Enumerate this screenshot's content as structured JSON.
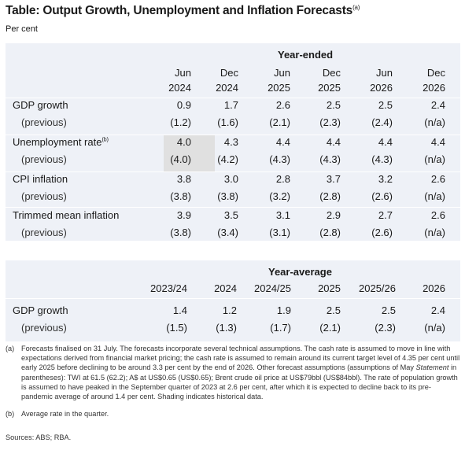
{
  "title": "Table: Output Growth, Unemployment and Inflation Forecasts",
  "title_note": "(a)",
  "subtitle": "Per cent",
  "table1": {
    "group_label": "Year-ended",
    "columns": [
      {
        "month": "Jun",
        "year": "2024"
      },
      {
        "month": "Dec",
        "year": "2024"
      },
      {
        "month": "Jun",
        "year": "2025"
      },
      {
        "month": "Dec",
        "year": "2025"
      },
      {
        "month": "Jun",
        "year": "2026"
      },
      {
        "month": "Dec",
        "year": "2026"
      }
    ],
    "rows": [
      {
        "label": "GDP growth",
        "label_note": "",
        "values": [
          "0.9",
          "1.7",
          "2.6",
          "2.5",
          "2.5",
          "2.4"
        ],
        "previous_label": "(previous)",
        "previous": [
          "(1.2)",
          "(1.6)",
          "(2.1)",
          "(2.3)",
          "(2.4)",
          "(n/a)"
        ]
      },
      {
        "label": "Unemployment rate",
        "label_note": "(b)",
        "values": [
          "4.0",
          "4.3",
          "4.4",
          "4.4",
          "4.4",
          "4.4"
        ],
        "previous_label": "(previous)",
        "previous": [
          "(4.0)",
          "(4.2)",
          "(4.3)",
          "(4.3)",
          "(4.3)",
          "(n/a)"
        ]
      },
      {
        "label": "CPI inflation",
        "label_note": "",
        "values": [
          "3.8",
          "3.0",
          "2.8",
          "3.7",
          "3.2",
          "2.6"
        ],
        "previous_label": "(previous)",
        "previous": [
          "(3.8)",
          "(3.8)",
          "(3.2)",
          "(2.8)",
          "(2.6)",
          "(n/a)"
        ]
      },
      {
        "label": "Trimmed mean inflation",
        "label_note": "",
        "values": [
          "3.9",
          "3.5",
          "3.1",
          "2.9",
          "2.7",
          "2.6"
        ],
        "previous_label": "(previous)",
        "previous": [
          "(3.8)",
          "(3.4)",
          "(3.1)",
          "(2.8)",
          "(2.6)",
          "(n/a)"
        ]
      }
    ]
  },
  "table2": {
    "group_label": "Year-average",
    "columns": [
      "2023/24",
      "2024",
      "2024/25",
      "2025",
      "2025/26",
      "2026"
    ],
    "rows": [
      {
        "label": "GDP growth",
        "values": [
          "1.4",
          "1.2",
          "1.9",
          "2.5",
          "2.5",
          "2.4"
        ],
        "previous_label": "(previous)",
        "previous": [
          "(1.5)",
          "(1.3)",
          "(1.7)",
          "(2.1)",
          "(2.3)",
          "(n/a)"
        ]
      }
    ]
  },
  "notes": [
    {
      "mark": "(a)",
      "before": "Forecasts finalised on 31 July. The forecasts incorporate several technical assumptions. The cash rate is assumed to move in line with expectations derived from financial market pricing; the cash rate is assumed to remain around its current target level of 4.35 per cent until early 2025 before declining to be around 3.3 per cent by the end of 2026. Other forecast assumptions (assumptions of May ",
      "italic": "Statement",
      "after": " in parentheses): TWI at 61.5 (62.2); A$ at US$0.65 (US$0.65); Brent crude oil price at US$79bbl (US$84bbl). The rate of population growth is assumed to have peaked in the September quarter of 2023 at 2.6 per cent, after which it is expected to decline back to its pre-pandemic average of around 1.4 per cent. Shading indicates historical data."
    },
    {
      "mark": "(b)",
      "before": "Average rate in the quarter.",
      "italic": "",
      "after": ""
    }
  ],
  "sources": "Sources: ABS; RBA.",
  "colors": {
    "panel": "#eef1f7",
    "historical_shading": "#e0e0e0",
    "divider": "#ffffff"
  }
}
